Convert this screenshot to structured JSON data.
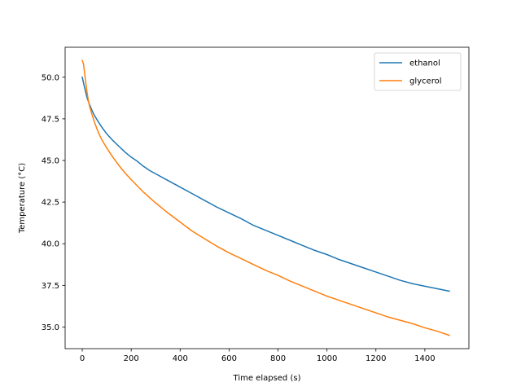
{
  "chart_data": {
    "type": "line",
    "title": "",
    "xlabel": "Time elapsed (s)",
    "ylabel": "Temperature (°C)",
    "xlim": [
      -70,
      1580
    ],
    "ylim": [
      33.7,
      51.8
    ],
    "xticks": [
      0,
      200,
      400,
      600,
      800,
      1000,
      1200,
      1400
    ],
    "yticks": [
      35.0,
      37.5,
      40.0,
      42.5,
      45.0,
      47.5,
      50.0
    ],
    "ytick_labels": [
      "35.0",
      "37.5",
      "40.0",
      "42.5",
      "45.0",
      "47.5",
      "50.0"
    ],
    "grid": false,
    "legend_position": "top-right",
    "series": [
      {
        "name": "ethanol",
        "color": "#1f77b4",
        "x": [
          0,
          10,
          20,
          30,
          40,
          50,
          60,
          80,
          100,
          125,
          150,
          175,
          200,
          225,
          250,
          275,
          300,
          350,
          400,
          450,
          500,
          550,
          600,
          650,
          700,
          750,
          800,
          850,
          900,
          950,
          1000,
          1050,
          1100,
          1150,
          1200,
          1250,
          1300,
          1350,
          1400,
          1450,
          1500
        ],
        "y": [
          50.0,
          49.35,
          48.75,
          48.35,
          48.0,
          47.7,
          47.45,
          47.0,
          46.6,
          46.2,
          45.85,
          45.5,
          45.2,
          44.95,
          44.65,
          44.4,
          44.2,
          43.8,
          43.4,
          43.0,
          42.6,
          42.2,
          41.85,
          41.5,
          41.1,
          40.8,
          40.5,
          40.2,
          39.9,
          39.6,
          39.35,
          39.05,
          38.8,
          38.55,
          38.3,
          38.05,
          37.8,
          37.6,
          37.45,
          37.3,
          37.15
        ]
      },
      {
        "name": "glycerol",
        "color": "#ff7f0e",
        "x": [
          0,
          5,
          10,
          15,
          20,
          25,
          30,
          40,
          50,
          60,
          70,
          80,
          100,
          125,
          150,
          175,
          200,
          250,
          300,
          350,
          400,
          450,
          500,
          550,
          600,
          650,
          700,
          750,
          800,
          850,
          900,
          950,
          1000,
          1050,
          1100,
          1150,
          1200,
          1250,
          1300,
          1350,
          1400,
          1450,
          1500
        ],
        "y": [
          51.0,
          50.8,
          50.2,
          49.6,
          49.05,
          48.6,
          48.25,
          47.75,
          47.3,
          46.9,
          46.55,
          46.25,
          45.75,
          45.2,
          44.7,
          44.25,
          43.85,
          43.1,
          42.45,
          41.85,
          41.3,
          40.75,
          40.3,
          39.85,
          39.45,
          39.1,
          38.75,
          38.4,
          38.1,
          37.75,
          37.45,
          37.15,
          36.85,
          36.6,
          36.35,
          36.1,
          35.85,
          35.6,
          35.4,
          35.2,
          34.95,
          34.75,
          34.5
        ]
      }
    ]
  }
}
